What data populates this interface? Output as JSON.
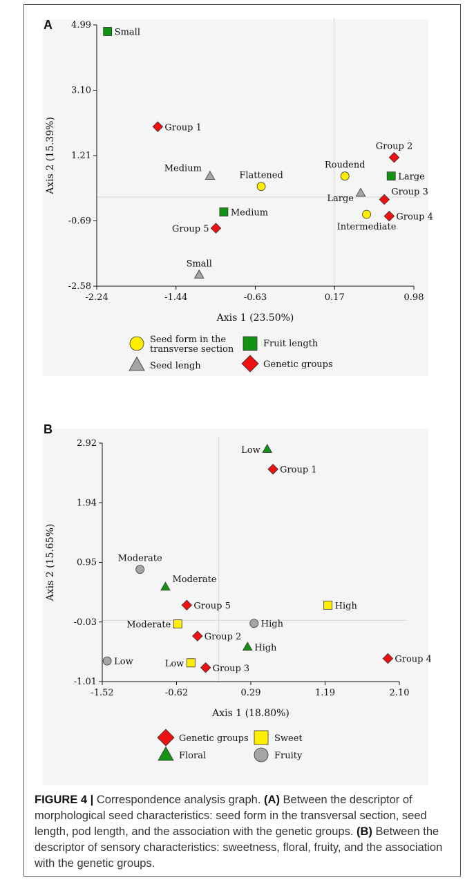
{
  "chart_data": [
    {
      "type": "scatter",
      "panel_label": "A",
      "xlabel": "Axis 1 (23.50%)",
      "ylabel": "Axis 2 (15.39%)",
      "xlim": [
        -2.24,
        0.98
      ],
      "ylim": [
        -2.58,
        4.99
      ],
      "xticks": [
        "-2.24",
        "-1.44",
        "-0.63",
        "0.17",
        "0.98"
      ],
      "yticks": [
        "-2.58",
        "-0.69",
        "1.21",
        "3.10",
        "4.99"
      ],
      "reference_lines": {
        "x": 0.17,
        "y": 0.0
      },
      "legend": [
        {
          "label": "Seed form in the transverse section",
          "marker": "circle",
          "color": "#ffee00"
        },
        {
          "label": "Fruit length",
          "marker": "square",
          "color": "#149214"
        },
        {
          "label": "Seed lengh",
          "marker": "triangle",
          "color": "#a5a5a5"
        },
        {
          "label": "Genetic groups",
          "marker": "diamond",
          "color": "#ee1111"
        }
      ],
      "series": [
        {
          "name": "Seed form in the transverse section",
          "marker": "circle",
          "color": "#ffee00",
          "points": [
            {
              "label": "Flattened",
              "x": -0.57,
              "y": 0.31,
              "label_pos": "top"
            },
            {
              "label": "Roudend",
              "x": 0.28,
              "y": 0.61,
              "label_pos": "top"
            },
            {
              "label": "Intermediate",
              "x": 0.5,
              "y": -0.5,
              "label_pos": "bottom"
            }
          ]
        },
        {
          "name": "Fruit length",
          "marker": "square",
          "color": "#149214",
          "points": [
            {
              "label": "Small",
              "x": -2.13,
              "y": 4.8,
              "label_pos": "right"
            },
            {
              "label": "Medium",
              "x": -0.95,
              "y": -0.43,
              "label_pos": "right"
            },
            {
              "label": "Large",
              "x": 0.75,
              "y": 0.61,
              "label_pos": "right"
            }
          ]
        },
        {
          "name": "Seed lengh",
          "marker": "triangle",
          "color": "#a5a5a5",
          "points": [
            {
              "label": "Medium",
              "x": -1.09,
              "y": 0.61,
              "label_pos": "left-top"
            },
            {
              "label": "Small",
              "x": -1.2,
              "y": -2.25,
              "label_pos": "top"
            },
            {
              "label": "Large",
              "x": 0.44,
              "y": 0.12,
              "label_pos": "left-bottom"
            }
          ]
        },
        {
          "name": "Genetic groups",
          "marker": "diamond",
          "color": "#ee1111",
          "points": [
            {
              "label": "Group 1",
              "x": -1.62,
              "y": 2.04,
              "label_pos": "right"
            },
            {
              "label": "Group 2",
              "x": 0.78,
              "y": 1.15,
              "label_pos": "top"
            },
            {
              "label": "Group 3",
              "x": 0.68,
              "y": -0.07,
              "label_pos": "right-top"
            },
            {
              "label": "Group 4",
              "x": 0.73,
              "y": -0.55,
              "label_pos": "right"
            },
            {
              "label": "Group 5",
              "x": -1.03,
              "y": -0.9,
              "label_pos": "left"
            }
          ]
        }
      ]
    },
    {
      "type": "scatter",
      "panel_label": "B",
      "xlabel": "Axis 1 (18.80%)",
      "ylabel": "Axis 2 (15.65%)",
      "xlim": [
        -1.52,
        2.1
      ],
      "ylim": [
        -1.01,
        2.92
      ],
      "xticks": [
        "-1.52",
        "-0.62",
        "0.29",
        "1.19",
        "2.10"
      ],
      "yticks": [
        "-1.01",
        "-0.03",
        "0.95",
        "1.94",
        "2.92"
      ],
      "reference_lines": {
        "x": -0.1,
        "y": 0.0
      },
      "legend": [
        {
          "label": "Genetic groups",
          "marker": "diamond",
          "color": "#ee1111"
        },
        {
          "label": "Sweet",
          "marker": "square",
          "color": "#ffee00"
        },
        {
          "label": "Floral",
          "marker": "triangle",
          "color": "#149214"
        },
        {
          "label": "Fruity",
          "marker": "circle",
          "color": "#a5a5a5"
        }
      ],
      "series": [
        {
          "name": "Genetic groups",
          "marker": "diamond",
          "color": "#ee1111",
          "points": [
            {
              "label": "Group 1",
              "x": 0.56,
              "y": 2.49,
              "label_pos": "right"
            },
            {
              "label": "Group 2",
              "x": -0.36,
              "y": -0.26,
              "label_pos": "right"
            },
            {
              "label": "Group 3",
              "x": -0.26,
              "y": -0.78,
              "label_pos": "right"
            },
            {
              "label": "Group 4",
              "x": 1.96,
              "y": -0.63,
              "label_pos": "right"
            },
            {
              "label": "Group 5",
              "x": -0.49,
              "y": 0.25,
              "label_pos": "right"
            }
          ]
        },
        {
          "name": "Sweet",
          "marker": "square",
          "color": "#ffee00",
          "points": [
            {
              "label": "High",
              "x": 1.23,
              "y": 0.25,
              "label_pos": "right"
            },
            {
              "label": "Moderate",
              "x": -0.6,
              "y": -0.06,
              "label_pos": "left"
            },
            {
              "label": "Low",
              "x": -0.44,
              "y": -0.7,
              "label_pos": "left"
            }
          ]
        },
        {
          "name": "Floral",
          "marker": "triangle",
          "color": "#149214",
          "points": [
            {
              "label": "Low",
              "x": 0.49,
              "y": 2.82,
              "label_pos": "left"
            },
            {
              "label": "Moderate",
              "x": -0.75,
              "y": 0.55,
              "label_pos": "right-top"
            },
            {
              "label": "High",
              "x": 0.25,
              "y": -0.44,
              "label_pos": "right"
            }
          ]
        },
        {
          "name": "Fruity",
          "marker": "circle",
          "color": "#a5a5a5",
          "points": [
            {
              "label": "Moderate",
              "x": -1.06,
              "y": 0.84,
              "label_pos": "top"
            },
            {
              "label": "High",
              "x": 0.33,
              "y": -0.05,
              "label_pos": "right"
            },
            {
              "label": "Low",
              "x": -1.46,
              "y": -0.67,
              "label_pos": "right"
            }
          ]
        }
      ]
    }
  ],
  "caption": {
    "figure_label": "FIGURE 4 |",
    "title": " Correspondence analysis graph. ",
    "a_label": "(A)",
    "a_text": " Between the descriptor of morphological seed characteristics: seed form in the transversal section, seed length, pod length, and the association with the genetic groups. ",
    "b_label": "(B)",
    "b_text": " Between the descriptor of sensory characteristics: sweetness, floral, fruity, and the association with the genetic groups."
  }
}
